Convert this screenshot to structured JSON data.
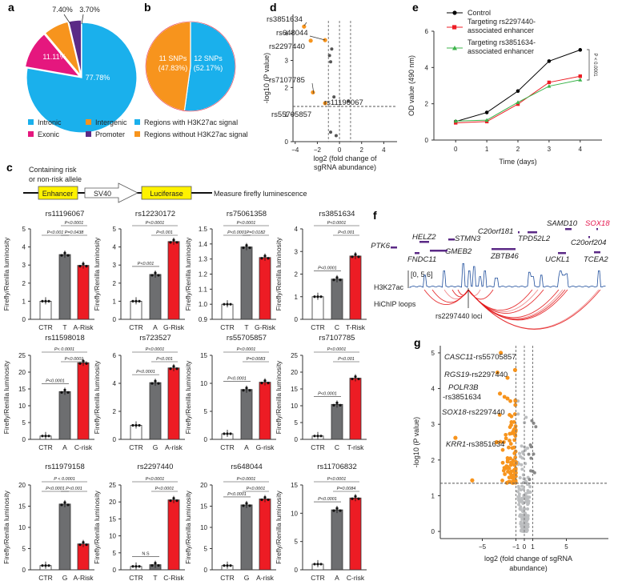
{
  "panels": {
    "a": "a",
    "b": "b",
    "c": "c",
    "d": "d",
    "e": "e",
    "f": "f",
    "g": "g"
  },
  "colors": {
    "intronic": "#1ab0ec",
    "exonic": "#e5177e",
    "intergenic": "#f7941d",
    "promoter": "#5b2a86",
    "with_h3k27ac": "#1ab0ec",
    "without_h3k27ac": "#f7941d",
    "gray_bar": "#6d6e70",
    "red_bar": "#ed1c24",
    "sig_dot": "#f7941d",
    "ns_dot": "#bcbec0",
    "control": "#000000",
    "rs2297440": "#ed1c24",
    "rs3851634": "#3cb44b",
    "loops": "#e31a1c",
    "track": "#1f4e9c",
    "gene": "#5b2a86",
    "sox18": "#e5174e"
  },
  "chart_data": [
    {
      "id": "a",
      "type": "pie",
      "slices": [
        {
          "label": "Intronic",
          "value": 77.78,
          "text": "77.78%",
          "color": "#1ab0ec"
        },
        {
          "label": "Exonic",
          "value": 11.11,
          "text": "11.11%",
          "color": "#e5177e"
        },
        {
          "label": "Intergenic",
          "value": 7.4,
          "text": "7.40%",
          "color": "#f7941d"
        },
        {
          "label": "Promoter",
          "value": 3.7,
          "text": "3.70%",
          "color": "#5b2a86"
        }
      ],
      "legend": [
        "Intronic",
        "Intergenic",
        "Exonic",
        "Promoter"
      ]
    },
    {
      "id": "b",
      "type": "pie",
      "slices": [
        {
          "label": "Regions with H3K27ac signal",
          "value": 52.17,
          "text1": "12 SNPs",
          "text2": "(52.17%)",
          "color": "#1ab0ec"
        },
        {
          "label": "Regions without H3K27ac signal",
          "value": 47.83,
          "text1": "11 SNPs",
          "text2": "(47.83%)",
          "color": "#f7941d"
        }
      ],
      "legend": [
        "Regions with H3K27ac  signal",
        "Regions without H3K27ac signal"
      ]
    },
    {
      "id": "c",
      "type": "bar",
      "construct": {
        "top_label1": "Containing risk",
        "top_label2": "or non-risk allele",
        "enhancer": "Enhancer",
        "sv40": "SV40",
        "luciferase": "Luciferase",
        "measure": "Measure firefly luminescence"
      },
      "ylabel": "Firefly/Renilla luminosity",
      "subplots": [
        {
          "title": "rs11196067",
          "categories": [
            "CTR",
            "T",
            "A-Risk"
          ],
          "values": [
            1.0,
            3.58,
            2.98
          ],
          "ylim": [
            0,
            5
          ],
          "yticks": [
            0,
            1,
            2,
            3,
            4,
            5
          ],
          "comparisons": [
            {
              "from": 1,
              "to": 2,
              "text": "P<0.0001",
              "level": 2
            },
            {
              "from": 0,
              "to": 1,
              "text": "P<0.001",
              "level": 1
            },
            {
              "from": 1,
              "to": 2,
              "text": "P=0.0438",
              "level": 1
            }
          ]
        },
        {
          "title": "rs12230172",
          "categories": [
            "CTR",
            "A",
            "G-Risk"
          ],
          "values": [
            1.0,
            2.48,
            4.3
          ],
          "ylim": [
            0,
            5
          ],
          "yticks": [
            0,
            1,
            2,
            3,
            4,
            5
          ],
          "comparisons": [
            {
              "from": 0,
              "to": 2,
              "text": "P<0.0001",
              "level": 2
            },
            {
              "from": 1,
              "to": 2,
              "text": "P<0.001",
              "level": 1
            },
            {
              "from": 0,
              "to": 1,
              "text": "P<0.001",
              "level": 0
            }
          ]
        },
        {
          "title": "rs75061358",
          "categories": [
            "CTR",
            "T",
            "G-Risk"
          ],
          "values": [
            1.0,
            1.38,
            1.31
          ],
          "ylim": [
            0.9,
            1.5
          ],
          "yticks": [
            0.9,
            1.0,
            1.1,
            1.2,
            1.3,
            1.4,
            1.5
          ],
          "comparisons": [
            {
              "from": 0,
              "to": 2,
              "text": "P<0.0001",
              "level": 2
            },
            {
              "from": 0,
              "to": 1,
              "text": "P<0.0001",
              "level": 1
            },
            {
              "from": 1,
              "to": 2,
              "text": "P=0.0182",
              "level": 1
            }
          ]
        },
        {
          "title": "rs3851634",
          "categories": [
            "CTR",
            "C",
            "T-Risk"
          ],
          "values": [
            1.0,
            1.78,
            2.8
          ],
          "ylim": [
            0,
            4
          ],
          "yticks": [
            0,
            1,
            2,
            3,
            4
          ],
          "comparisons": [
            {
              "from": 0,
              "to": 2,
              "text": "P<0.0001",
              "level": 2
            },
            {
              "from": 1,
              "to": 2,
              "text": "P<0.001",
              "level": 1
            },
            {
              "from": 0,
              "to": 1,
              "text": "P<0.0001",
              "level": 0
            }
          ]
        },
        {
          "title": "rs11598018",
          "categories": [
            "CTR",
            "A",
            "C-risk"
          ],
          "values": [
            1.0,
            14.2,
            22.8
          ],
          "ylim": [
            0,
            25
          ],
          "yticks": [
            0,
            5,
            10,
            15,
            20,
            25
          ],
          "comparisons": [
            {
              "from": 0,
              "to": 2,
              "text": "P< 0.0001",
              "level": 2
            },
            {
              "from": 1,
              "to": 2,
              "text": "P<0.0001",
              "level": 1
            },
            {
              "from": 0,
              "to": 1,
              "text": "P<0.0001",
              "level": 0
            }
          ]
        },
        {
          "title": "rs723527",
          "categories": [
            "CTR",
            "G",
            "A-risk"
          ],
          "values": [
            1.0,
            4.05,
            5.1
          ],
          "ylim": [
            0,
            6
          ],
          "yticks": [
            0,
            2,
            4,
            6
          ],
          "comparisons": [
            {
              "from": 0,
              "to": 2,
              "text": "P<0.0001",
              "level": 2
            },
            {
              "from": 1,
              "to": 2,
              "text": "P<0.001",
              "level": 1
            },
            {
              "from": 0,
              "to": 1,
              "text": "P<0.0001",
              "level": 0
            }
          ]
        },
        {
          "title": "rs55705857",
          "categories": [
            "CTR",
            "A",
            "G-risk"
          ],
          "values": [
            1.0,
            8.9,
            10.2
          ],
          "ylim": [
            0,
            15
          ],
          "yticks": [
            0,
            5,
            10,
            15
          ],
          "comparisons": [
            {
              "from": 0,
              "to": 2,
              "text": "P<0.0001",
              "level": 2
            },
            {
              "from": 1,
              "to": 2,
              "text": "P=0.0083",
              "level": 1
            },
            {
              "from": 0,
              "to": 1,
              "text": "P<0.0001",
              "level": 0
            }
          ]
        },
        {
          "title": "rs7107785",
          "categories": [
            "CTR",
            "C",
            "T-risk"
          ],
          "values": [
            1.0,
            10.4,
            18.2
          ],
          "ylim": [
            0,
            25
          ],
          "yticks": [
            0,
            5,
            10,
            15,
            20,
            25
          ],
          "comparisons": [
            {
              "from": 0,
              "to": 2,
              "text": "P<0.0001",
              "level": 2
            },
            {
              "from": 1,
              "to": 2,
              "text": "P<0.001",
              "level": 1
            },
            {
              "from": 0,
              "to": 1,
              "text": "P<0.0001",
              "level": 0
            }
          ]
        },
        {
          "title": "rs11979158",
          "categories": [
            "CTR",
            "G",
            "A-Risk"
          ],
          "values": [
            1.0,
            15.5,
            6.1
          ],
          "ylim": [
            0,
            20
          ],
          "yticks": [
            0,
            5,
            10,
            15,
            20
          ],
          "comparisons": [
            {
              "from": 0,
              "to": 2,
              "text": "P < 0.0001",
              "level": 2
            },
            {
              "from": 1,
              "to": 2,
              "text": "P<0.001",
              "level": 1
            },
            {
              "from": 0,
              "to": 1,
              "text": "P<0.0001",
              "level": 1
            }
          ]
        },
        {
          "title": "rs2297440",
          "categories": [
            "CTR",
            "T",
            "C-Risk"
          ],
          "values": [
            1.0,
            1.5,
            20.6
          ],
          "ylim": [
            0,
            25
          ],
          "yticks": [
            0,
            5,
            10,
            15,
            20,
            25
          ],
          "comparisons": [
            {
              "from": 0,
              "to": 2,
              "text": "P<0.0001",
              "level": 2
            },
            {
              "from": 1,
              "to": 2,
              "text": "P<0.0001",
              "level": 1
            },
            {
              "from": 0,
              "to": 1,
              "text": "N.S",
              "level": 0
            }
          ]
        },
        {
          "title": "rs648044",
          "categories": [
            "CTR",
            "G",
            "A-risk"
          ],
          "values": [
            1.0,
            15.3,
            16.7
          ],
          "ylim": [
            0,
            20
          ],
          "yticks": [
            0,
            5,
            10,
            15,
            20
          ],
          "comparisons": [
            {
              "from": 0,
              "to": 2,
              "text": "P<0.0001",
              "level": 2
            },
            {
              "from": 1,
              "to": 2,
              "text": "P<0.0001",
              "level": 1
            },
            {
              "from": 0,
              "to": 1,
              "text": "P<0.0001",
              "level": 0
            }
          ]
        },
        {
          "title": "rs11706832",
          "categories": [
            "CTR",
            "A",
            "C-risk"
          ],
          "values": [
            1.0,
            10.6,
            12.7
          ],
          "ylim": [
            0,
            15
          ],
          "yticks": [
            0,
            5,
            10,
            15
          ],
          "comparisons": [
            {
              "from": 0,
              "to": 2,
              "text": "P<0.0001",
              "level": 2
            },
            {
              "from": 1,
              "to": 2,
              "text": "P=0.0084",
              "level": 1
            },
            {
              "from": 0,
              "to": 1,
              "text": "P<0.0001",
              "level": 0
            }
          ]
        }
      ]
    },
    {
      "id": "d",
      "type": "scatter",
      "xlabel1": "log2 (fold change of",
      "xlabel2": "sgRNA abundance)",
      "ylabel": "-log10 (P value)",
      "xlim": [
        -4.2,
        5.2
      ],
      "ylim": [
        0,
        4.7
      ],
      "xticks": [
        -4,
        -2,
        0,
        2,
        4
      ],
      "yticks": [
        0,
        1,
        2,
        3,
        4
      ],
      "vlines": [
        -1,
        0,
        1
      ],
      "hline": 1.3,
      "points": [
        {
          "x": -3.2,
          "y": 4.25,
          "sig": true,
          "label": "rs3851634"
        },
        {
          "x": -1.3,
          "y": 3.75,
          "sig": true,
          "label": "rs648044"
        },
        {
          "x": -2.6,
          "y": 3.73,
          "sig": true,
          "label": "rs2297440"
        },
        {
          "x": -2.4,
          "y": 1.82,
          "sig": true,
          "label": "rs7107785"
        },
        {
          "x": -1.3,
          "y": 1.42,
          "sig": true,
          "label": "rs55705857"
        },
        {
          "x": 0.8,
          "y": 1.5,
          "sig": false,
          "label": "rs11196067"
        },
        {
          "x": -0.7,
          "y": 3.42,
          "sig": false
        },
        {
          "x": -0.9,
          "y": 3.18,
          "sig": false
        },
        {
          "x": -0.8,
          "y": 2.95,
          "sig": false
        },
        {
          "x": -0.5,
          "y": 1.65,
          "sig": false
        },
        {
          "x": -0.8,
          "y": 0.35,
          "sig": false
        },
        {
          "x": -0.3,
          "y": 0.22,
          "sig": false
        }
      ]
    },
    {
      "id": "e",
      "type": "line",
      "xlabel": "Time (days)",
      "ylabel": "OD value (490 nm)",
      "xlim": [
        -0.7,
        4.7
      ],
      "ylim": [
        0,
        6
      ],
      "xticks": [
        0,
        1,
        2,
        3,
        4
      ],
      "yticks": [
        0,
        2,
        4,
        6
      ],
      "annotation": "P < 0.0001",
      "series": [
        {
          "name": "Control",
          "x": [
            0,
            1,
            2,
            3,
            4
          ],
          "values": [
            1.02,
            1.52,
            2.7,
            4.35,
            4.97
          ],
          "color": "#000000",
          "marker": "circle"
        },
        {
          "name": "Targeting rs2297440-|associated enhancer",
          "x": [
            0,
            1,
            2,
            3,
            4
          ],
          "values": [
            0.95,
            1.02,
            1.98,
            3.18,
            3.52
          ],
          "color": "#ed1c24",
          "marker": "square"
        },
        {
          "name": "Targeting rs3851634-|associated enhancer",
          "x": [
            0,
            1,
            2,
            3,
            4
          ],
          "values": [
            1.05,
            1.1,
            2.08,
            2.97,
            3.32
          ],
          "color": "#3cb44b",
          "marker": "triangle"
        }
      ]
    },
    {
      "id": "f",
      "type": "diagram",
      "genes": [
        {
          "name": "PTK6"
        },
        {
          "name": "HELZ2"
        },
        {
          "name": "FNDC11"
        },
        {
          "name": "STMN3"
        },
        {
          "name": "GMEB2"
        },
        {
          "name": "C20orf181"
        },
        {
          "name": "ZBTB46"
        },
        {
          "name": "TPD52L2"
        },
        {
          "name": "SAMD10"
        },
        {
          "name": "UCKL1"
        },
        {
          "name": "SOX18"
        },
        {
          "name": "C20orf204"
        },
        {
          "name": "TCEA2"
        }
      ],
      "track_label": "H3K27ac",
      "track_range": "[0, 5.6]",
      "loops_label": "HiChIP loops",
      "locus_label": "rs2297440 loci"
    },
    {
      "id": "g",
      "type": "scatter",
      "xlabel1": "log2 (fold change of sgRNA",
      "xlabel2": "abundance)",
      "ylabel": "-log10 (P value)",
      "xlim": [
        -10,
        10
      ],
      "ylim": [
        -0.2,
        5.2
      ],
      "xticks": [
        -5,
        -1,
        0,
        1,
        5
      ],
      "yticks": [
        0,
        1,
        2,
        3,
        4,
        5
      ],
      "vlines": [
        -1,
        0,
        1
      ],
      "hline": 1.35,
      "labels": [
        {
          "gene": "CASC11",
          "snp": "-rs55705857",
          "x": -1.1,
          "y": 4.52
        },
        {
          "gene": "RGS19",
          "snp": "-rs2297440",
          "x": -2.9,
          "y": 3.86
        },
        {
          "gene": "POLR3B",
          "snp": "-rs3851634",
          "x": -8.2,
          "y": 2.62
        },
        {
          "gene": "SOX18",
          "snp": "-rs2297440",
          "x": -3.3,
          "y": 2.5
        },
        {
          "gene": "KRR1",
          "snp": "-rs3851634",
          "x": -6.2,
          "y": 1.43
        }
      ]
    }
  ]
}
